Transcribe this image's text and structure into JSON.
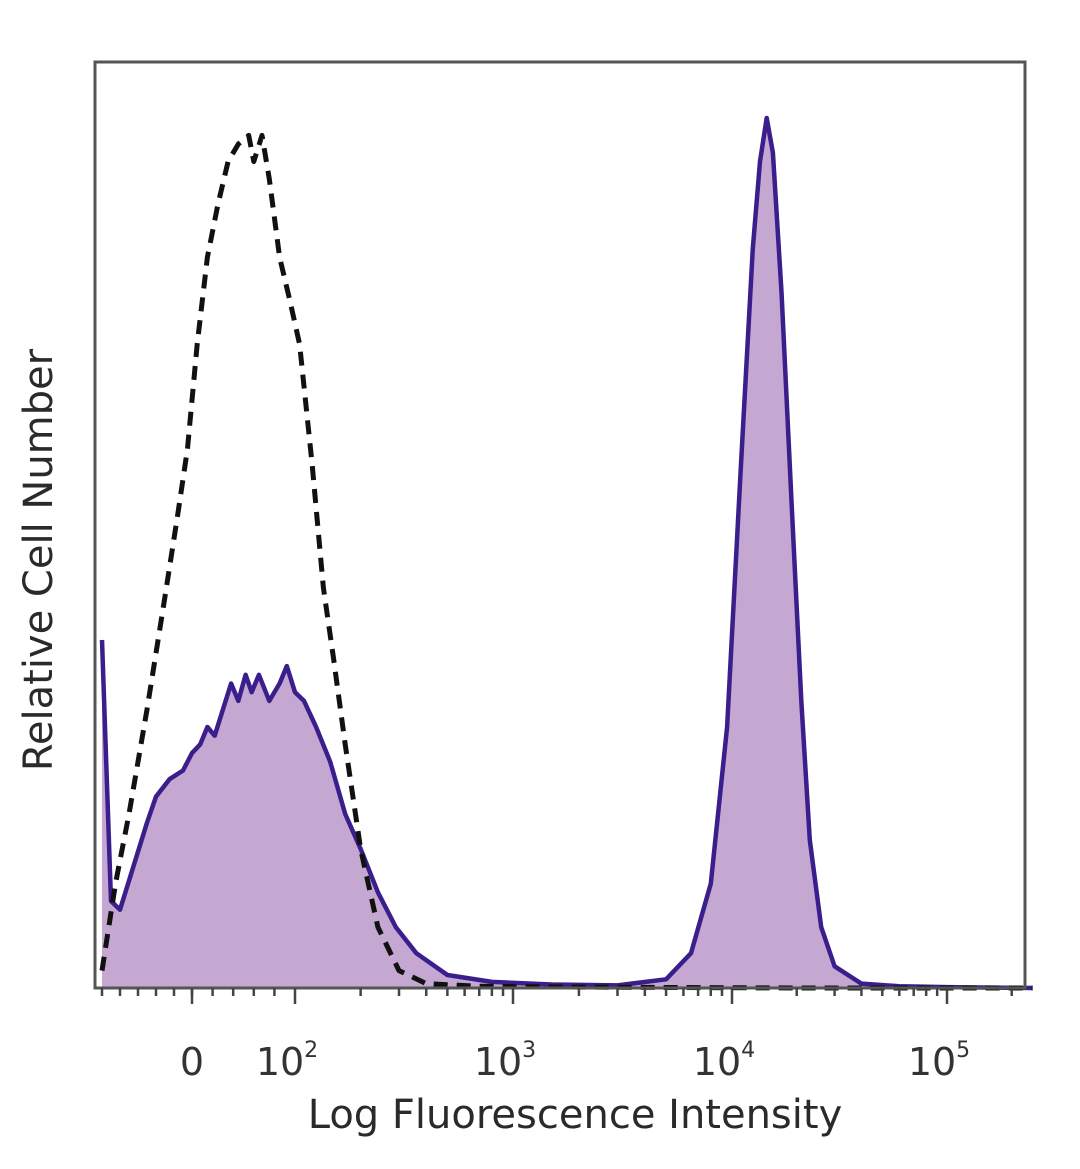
{
  "chart_data": {
    "type": "area",
    "xlabel": "Log Fluorescence Intensity",
    "ylabel": "Relative Cell Number",
    "x_scale": "biexponential",
    "x_ticks": [
      {
        "value": 0,
        "base": "0",
        "exp": ""
      },
      {
        "value": 100,
        "base": "10",
        "exp": "2"
      },
      {
        "value": 1000,
        "base": "10",
        "exp": "3"
      },
      {
        "value": 10000,
        "base": "10",
        "exp": "4"
      },
      {
        "value": 100000,
        "base": "10",
        "exp": "5"
      }
    ],
    "xlim": [
      -100,
      250000
    ],
    "ylim": [
      0,
      100
    ],
    "grid": false,
    "legend": "none",
    "series": [
      {
        "style": "dashed",
        "color": "#111111",
        "fill": "none",
        "points": [
          [
            -100,
            2
          ],
          [
            -85,
            12
          ],
          [
            -70,
            20
          ],
          [
            -50,
            32
          ],
          [
            -30,
            45
          ],
          [
            -15,
            55
          ],
          [
            -5,
            62
          ],
          [
            5,
            74
          ],
          [
            15,
            84
          ],
          [
            25,
            90
          ],
          [
            35,
            95
          ],
          [
            45,
            97
          ],
          [
            55,
            98
          ],
          [
            60,
            95
          ],
          [
            68,
            98
          ],
          [
            75,
            93
          ],
          [
            85,
            84
          ],
          [
            95,
            79
          ],
          [
            105,
            74
          ],
          [
            120,
            60
          ],
          [
            135,
            46
          ],
          [
            150,
            38
          ],
          [
            170,
            28
          ],
          [
            200,
            16
          ],
          [
            240,
            7
          ],
          [
            300,
            2
          ],
          [
            400,
            0.5
          ],
          [
            700,
            0.2
          ],
          [
            2000,
            0.1
          ],
          [
            20000,
            0
          ],
          [
            250000,
            0
          ]
        ]
      },
      {
        "style": "solid",
        "color": "#3a1e8c",
        "fill": "#c5a8d2",
        "points": [
          [
            -100,
            40
          ],
          [
            -95,
            25
          ],
          [
            -90,
            10
          ],
          [
            -80,
            9
          ],
          [
            -65,
            14
          ],
          [
            -50,
            19
          ],
          [
            -40,
            22
          ],
          [
            -25,
            24
          ],
          [
            -10,
            25
          ],
          [
            0,
            27
          ],
          [
            8,
            28
          ],
          [
            15,
            30
          ],
          [
            22,
            29
          ],
          [
            30,
            32
          ],
          [
            38,
            35
          ],
          [
            45,
            33
          ],
          [
            52,
            36
          ],
          [
            58,
            34
          ],
          [
            65,
            36
          ],
          [
            75,
            33
          ],
          [
            85,
            35
          ],
          [
            92,
            37
          ],
          [
            100,
            34
          ],
          [
            110,
            33
          ],
          [
            125,
            30
          ],
          [
            145,
            26
          ],
          [
            170,
            20
          ],
          [
            200,
            16
          ],
          [
            240,
            11
          ],
          [
            290,
            7
          ],
          [
            360,
            4
          ],
          [
            500,
            1.5
          ],
          [
            800,
            0.7
          ],
          [
            1500,
            0.4
          ],
          [
            3000,
            0.3
          ],
          [
            5000,
            1
          ],
          [
            6500,
            4
          ],
          [
            8000,
            12
          ],
          [
            9500,
            30
          ],
          [
            11000,
            60
          ],
          [
            12500,
            85
          ],
          [
            13500,
            95
          ],
          [
            14500,
            100
          ],
          [
            15500,
            96
          ],
          [
            17000,
            80
          ],
          [
            19000,
            55
          ],
          [
            21000,
            33
          ],
          [
            23000,
            17
          ],
          [
            26000,
            7
          ],
          [
            30000,
            2.5
          ],
          [
            40000,
            0.5
          ],
          [
            60000,
            0.2
          ],
          [
            100000,
            0.1
          ],
          [
            250000,
            0
          ]
        ]
      }
    ]
  }
}
